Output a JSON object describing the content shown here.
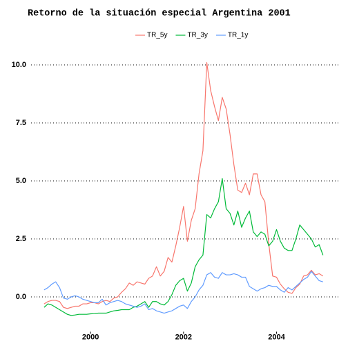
{
  "chart_data": {
    "type": "line",
    "title": "Retorno de la situación especial Argentina 2001",
    "x": [
      1999,
      1999.083,
      1999.167,
      1999.25,
      1999.333,
      1999.417,
      1999.5,
      1999.583,
      1999.667,
      1999.75,
      1999.833,
      1999.917,
      2000,
      2000.083,
      2000.167,
      2000.25,
      2000.333,
      2000.417,
      2000.5,
      2000.583,
      2000.667,
      2000.75,
      2000.833,
      2000.917,
      2001,
      2001.083,
      2001.167,
      2001.25,
      2001.333,
      2001.417,
      2001.5,
      2001.583,
      2001.667,
      2001.75,
      2001.833,
      2001.917,
      2002,
      2002.083,
      2002.167,
      2002.25,
      2002.333,
      2002.417,
      2002.5,
      2002.583,
      2002.667,
      2002.75,
      2002.833,
      2002.917,
      2003,
      2003.083,
      2003.167,
      2003.25,
      2003.333,
      2003.417,
      2003.5,
      2003.583,
      2003.667,
      2003.75,
      2003.833,
      2003.917,
      2004,
      2004.083,
      2004.167,
      2004.25,
      2004.333,
      2004.417,
      2004.5,
      2004.583,
      2004.667,
      2004.75,
      2004.833,
      2004.917,
      2005
    ],
    "series": [
      {
        "name": "TR_5y",
        "color": "#F8766D",
        "values": [
          -0.3,
          -0.2,
          -0.15,
          -0.15,
          -0.2,
          -0.45,
          -0.5,
          -0.45,
          -0.4,
          -0.4,
          -0.3,
          -0.3,
          -0.25,
          -0.25,
          -0.3,
          -0.2,
          -0.15,
          -0.2,
          -0.05,
          0.0,
          0.2,
          0.35,
          0.6,
          0.5,
          0.65,
          0.6,
          0.55,
          0.8,
          0.9,
          1.3,
          0.9,
          1.1,
          1.7,
          1.5,
          2.2,
          3.0,
          3.9,
          2.4,
          3.3,
          3.8,
          5.3,
          6.3,
          10.1,
          8.9,
          8.2,
          7.6,
          8.6,
          8.1,
          7.0,
          5.7,
          4.6,
          4.5,
          4.9,
          4.4,
          5.3,
          5.3,
          4.4,
          4.1,
          2.3,
          0.9,
          0.85,
          0.55,
          0.35,
          0.2,
          0.15,
          0.4,
          0.55,
          0.9,
          0.95,
          1.15,
          0.95,
          1.0,
          0.9
        ]
      },
      {
        "name": "TR_3y",
        "color": "#00BA38",
        "values": [
          -0.45,
          -0.3,
          -0.35,
          -0.45,
          -0.55,
          -0.65,
          -0.75,
          -0.8,
          -0.78,
          -0.75,
          -0.75,
          -0.75,
          -0.73,
          -0.72,
          -0.7,
          -0.7,
          -0.7,
          -0.65,
          -0.6,
          -0.58,
          -0.55,
          -0.55,
          -0.55,
          -0.45,
          -0.4,
          -0.3,
          -0.2,
          -0.45,
          -0.2,
          -0.2,
          -0.3,
          -0.35,
          -0.2,
          0.1,
          0.5,
          0.7,
          0.8,
          0.25,
          0.6,
          1.3,
          1.6,
          1.8,
          3.55,
          3.4,
          3.8,
          4.1,
          5.1,
          3.8,
          3.6,
          3.1,
          3.7,
          3.0,
          3.4,
          3.7,
          2.8,
          2.6,
          2.8,
          2.7,
          2.2,
          2.4,
          2.9,
          2.4,
          2.1,
          2.0,
          2.0,
          2.5,
          3.1,
          2.9,
          2.7,
          2.5,
          2.15,
          2.25,
          1.8
        ]
      },
      {
        "name": "TR_1y",
        "color": "#619CFF",
        "values": [
          0.3,
          0.4,
          0.55,
          0.65,
          0.4,
          -0.05,
          -0.1,
          0.0,
          0.05,
          0.0,
          -0.1,
          -0.15,
          -0.2,
          -0.25,
          -0.25,
          -0.1,
          -0.35,
          -0.25,
          -0.2,
          -0.15,
          -0.2,
          -0.3,
          -0.35,
          -0.4,
          -0.45,
          -0.4,
          -0.3,
          -0.55,
          -0.5,
          -0.6,
          -0.65,
          -0.7,
          -0.65,
          -0.6,
          -0.5,
          -0.4,
          -0.35,
          -0.5,
          -0.2,
          0.0,
          0.3,
          0.5,
          0.95,
          1.05,
          0.85,
          0.8,
          1.05,
          0.95,
          0.95,
          1.0,
          0.95,
          0.85,
          0.85,
          0.45,
          0.35,
          0.25,
          0.35,
          0.4,
          0.5,
          0.45,
          0.45,
          0.3,
          0.2,
          0.4,
          0.3,
          0.45,
          0.6,
          0.75,
          0.85,
          1.1,
          0.9,
          0.7,
          0.65
        ]
      }
    ],
    "xlim": [
      1998.72,
      2005.33
    ],
    "xticks": [
      2000,
      2002,
      2004
    ],
    "ylim": [
      -1.5,
      10.6
    ],
    "yticks": [
      {
        "value": 0,
        "label": "0.0"
      },
      {
        "value": 2.5,
        "label": "2.5"
      },
      {
        "value": 5,
        "label": "5.0"
      },
      {
        "value": 7.5,
        "label": "7.5"
      },
      {
        "value": 10,
        "label": "10.0"
      }
    ],
    "grid": true,
    "legend": "top"
  }
}
